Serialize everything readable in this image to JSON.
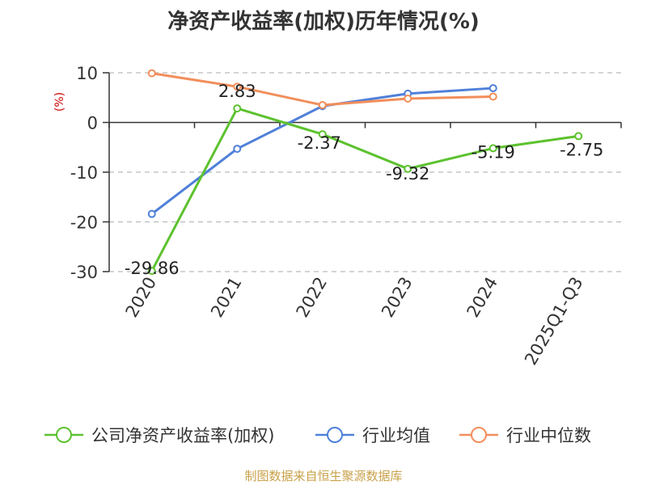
{
  "chart_data": {
    "type": "line",
    "title": "净资产收益率(加权)历年情况(%)",
    "ylabel": "(%)",
    "xlabel": "",
    "categories": [
      "2020",
      "2021",
      "2022",
      "2023",
      "2024",
      "2025Q1-Q3"
    ],
    "ylim": [
      -30,
      10
    ],
    "yticks": [
      10,
      0,
      -10,
      -20,
      -30
    ],
    "grid": "horizontal dashed",
    "legend_position": "bottom",
    "series": [
      {
        "name": "公司净资产收益率(加权)",
        "color": "#5dc22f",
        "values": [
          -29.86,
          2.83,
          -2.37,
          -9.32,
          -5.19,
          -2.75
        ],
        "labels": [
          "-29.86",
          "2.83",
          "-2.37",
          "-9.32",
          "-5.19",
          "-2.75"
        ]
      },
      {
        "name": "行业均值",
        "color": "#4f80d9",
        "values": [
          -18.4,
          -5.3,
          3.3,
          5.8,
          6.9,
          null
        ]
      },
      {
        "name": "行业中位数",
        "color": "#f28e5b",
        "values": [
          9.9,
          7.2,
          3.5,
          4.8,
          5.2,
          null
        ]
      }
    ],
    "ylabel_color": "#cc0000"
  },
  "source_note": "制图数据来自恒生聚源数据库"
}
